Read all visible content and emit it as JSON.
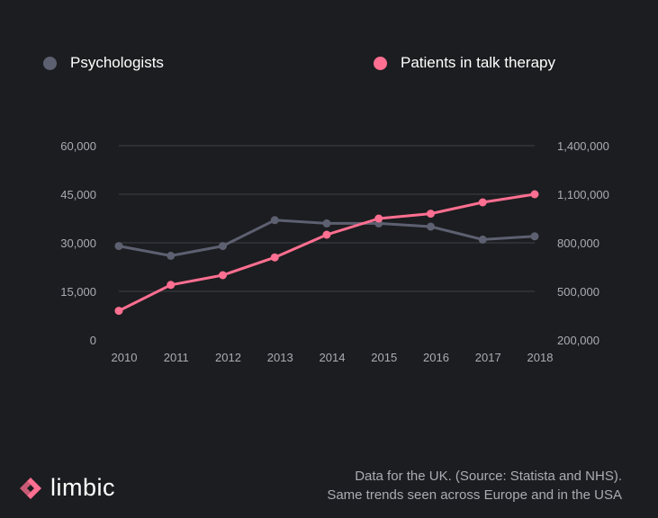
{
  "legend": [
    {
      "label": "Psychologists",
      "color": "#5d6070"
    },
    {
      "label": "Patients in talk therapy",
      "color": "#ff6f91"
    }
  ],
  "chart_data": {
    "type": "line",
    "x": [
      "2010",
      "2011",
      "2012",
      "2013",
      "2014",
      "2015",
      "2016",
      "2017",
      "2018"
    ],
    "series": [
      {
        "name": "Psychologists",
        "axis": "left",
        "color": "#5d6070",
        "values": [
          29000,
          26000,
          29000,
          37000,
          36000,
          36000,
          35000,
          31000,
          32000
        ]
      },
      {
        "name": "Patients in talk therapy",
        "axis": "right",
        "color": "#ff6f91",
        "values": [
          380000,
          540000,
          600000,
          710000,
          850000,
          950000,
          980000,
          1050000,
          1100000
        ]
      }
    ],
    "y_left": {
      "ticks": [
        0,
        15000,
        30000,
        45000,
        60000
      ],
      "labels": [
        "0",
        "15,000",
        "30,000",
        "45,000",
        "60,000"
      ],
      "ylim": [
        0,
        60000
      ]
    },
    "y_right": {
      "ticks": [
        200000,
        500000,
        800000,
        1100000,
        1400000
      ],
      "labels": [
        "200,000",
        "500,000",
        "800,000",
        "1,100,000",
        "1,400,000"
      ],
      "ylim": [
        200000,
        1400000
      ]
    },
    "grid": true,
    "legend_position": "top"
  },
  "footer": {
    "source_line1": "Data for the UK. (Source: Statista and NHS).",
    "source_line2": "Same trends seen across Europe and in the USA"
  },
  "logo": {
    "text": "limbic",
    "icon": "limbic-logo-icon",
    "color": "#ff6f91"
  }
}
